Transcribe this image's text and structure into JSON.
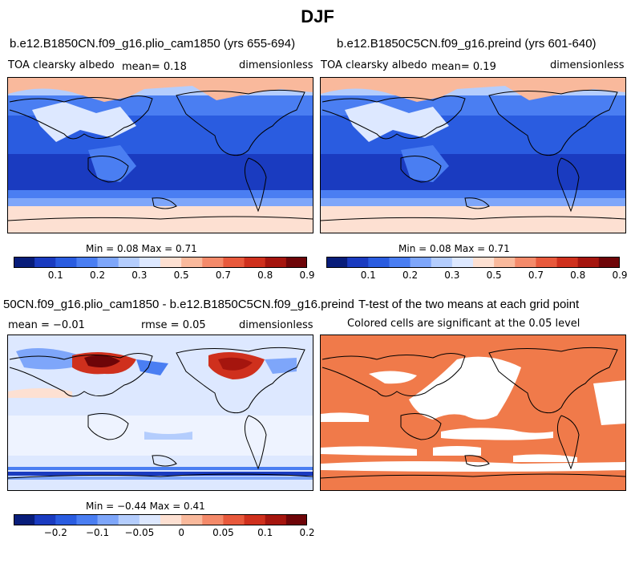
{
  "title": "DJF",
  "panels": [
    {
      "title": "b.e12.B1850CN.f09_g16.plio_cam1850 (yrs 655-694)",
      "left": "TOA clearsky albedo",
      "mid": "mean=    0.18",
      "right": "dimensionless",
      "minmax": "Min =    0.08 Max =    0.71"
    },
    {
      "title": "b.e12.B1850C5CN.f09_g16.preind (yrs 601-640)",
      "left": "TOA clearsky albedo",
      "mid": "mean=    0.19",
      "right": "dimensionless",
      "minmax": "Min =    0.08 Max =    0.71"
    },
    {
      "title": "50CN.f09_g16.plio_cam1850 - b.e12.B1850C5CN.f09_g16.preind",
      "left": "mean =  −0.01",
      "mid": "rmse =    0.05",
      "right": "dimensionless",
      "minmax": "Min =  −0.44 Max =    0.41"
    },
    {
      "title": "T-test of the two means at each grid point",
      "subtitle": "Colored cells are significant at the 0.05 level"
    }
  ],
  "chart_data": [
    {
      "type": "heatmap",
      "title": "b.e12.B1850CN.f09_g16.plio_cam1850 (yrs 655-694)",
      "variable": "TOA clearsky albedo",
      "units": "dimensionless",
      "mean": 0.18,
      "min": 0.08,
      "max": 0.71,
      "colorbar_ticks": [
        "0.1",
        "0.2",
        "0.3",
        "0.5",
        "0.7",
        "0.8",
        "0.9"
      ],
      "colorbar_colors": [
        "#081d7a",
        "#1a3bc0",
        "#2a5ce0",
        "#4a7ef2",
        "#7ea6fa",
        "#b4cdfd",
        "#dde8ff",
        "#fde0d2",
        "#f9b99c",
        "#f48a6a",
        "#e8593c",
        "#cf301d",
        "#a5150e",
        "#6e0508"
      ]
    },
    {
      "type": "heatmap",
      "title": "b.e12.B1850C5CN.f09_g16.preind (yrs 601-640)",
      "variable": "TOA clearsky albedo",
      "units": "dimensionless",
      "mean": 0.19,
      "min": 0.08,
      "max": 0.71,
      "colorbar_ticks": [
        "0.1",
        "0.2",
        "0.3",
        "0.5",
        "0.7",
        "0.8",
        "0.9"
      ],
      "colorbar_colors": [
        "#081d7a",
        "#1a3bc0",
        "#2a5ce0",
        "#4a7ef2",
        "#7ea6fa",
        "#b4cdfd",
        "#dde8ff",
        "#fde0d2",
        "#f9b99c",
        "#f48a6a",
        "#e8593c",
        "#cf301d",
        "#a5150e",
        "#6e0508"
      ]
    },
    {
      "type": "heatmap",
      "title": "50CN.f09_g16.plio_cam1850 - b.e12.B1850C5CN.f09_g16.preind",
      "units": "dimensionless",
      "mean": -0.01,
      "rmse": 0.05,
      "min": -0.44,
      "max": 0.41,
      "colorbar_ticks": [
        "−0.2",
        "−0.1",
        "−0.05",
        "0",
        "0.05",
        "0.1",
        "0.2"
      ],
      "colorbar_colors": [
        "#081d7a",
        "#1a3bc0",
        "#2a5ce0",
        "#4a7ef2",
        "#7ea6fa",
        "#b4cdfd",
        "#dde8ff",
        "#fde0d2",
        "#f9b99c",
        "#f48a6a",
        "#e8593c",
        "#cf301d",
        "#a5150e",
        "#6e0508"
      ]
    },
    {
      "type": "heatmap",
      "title": "T-test of the two means at each grid point",
      "subtitle": "Colored cells are significant at the 0.05 level",
      "significance_level": 0.05,
      "significant_color": "#f07a4a"
    }
  ]
}
